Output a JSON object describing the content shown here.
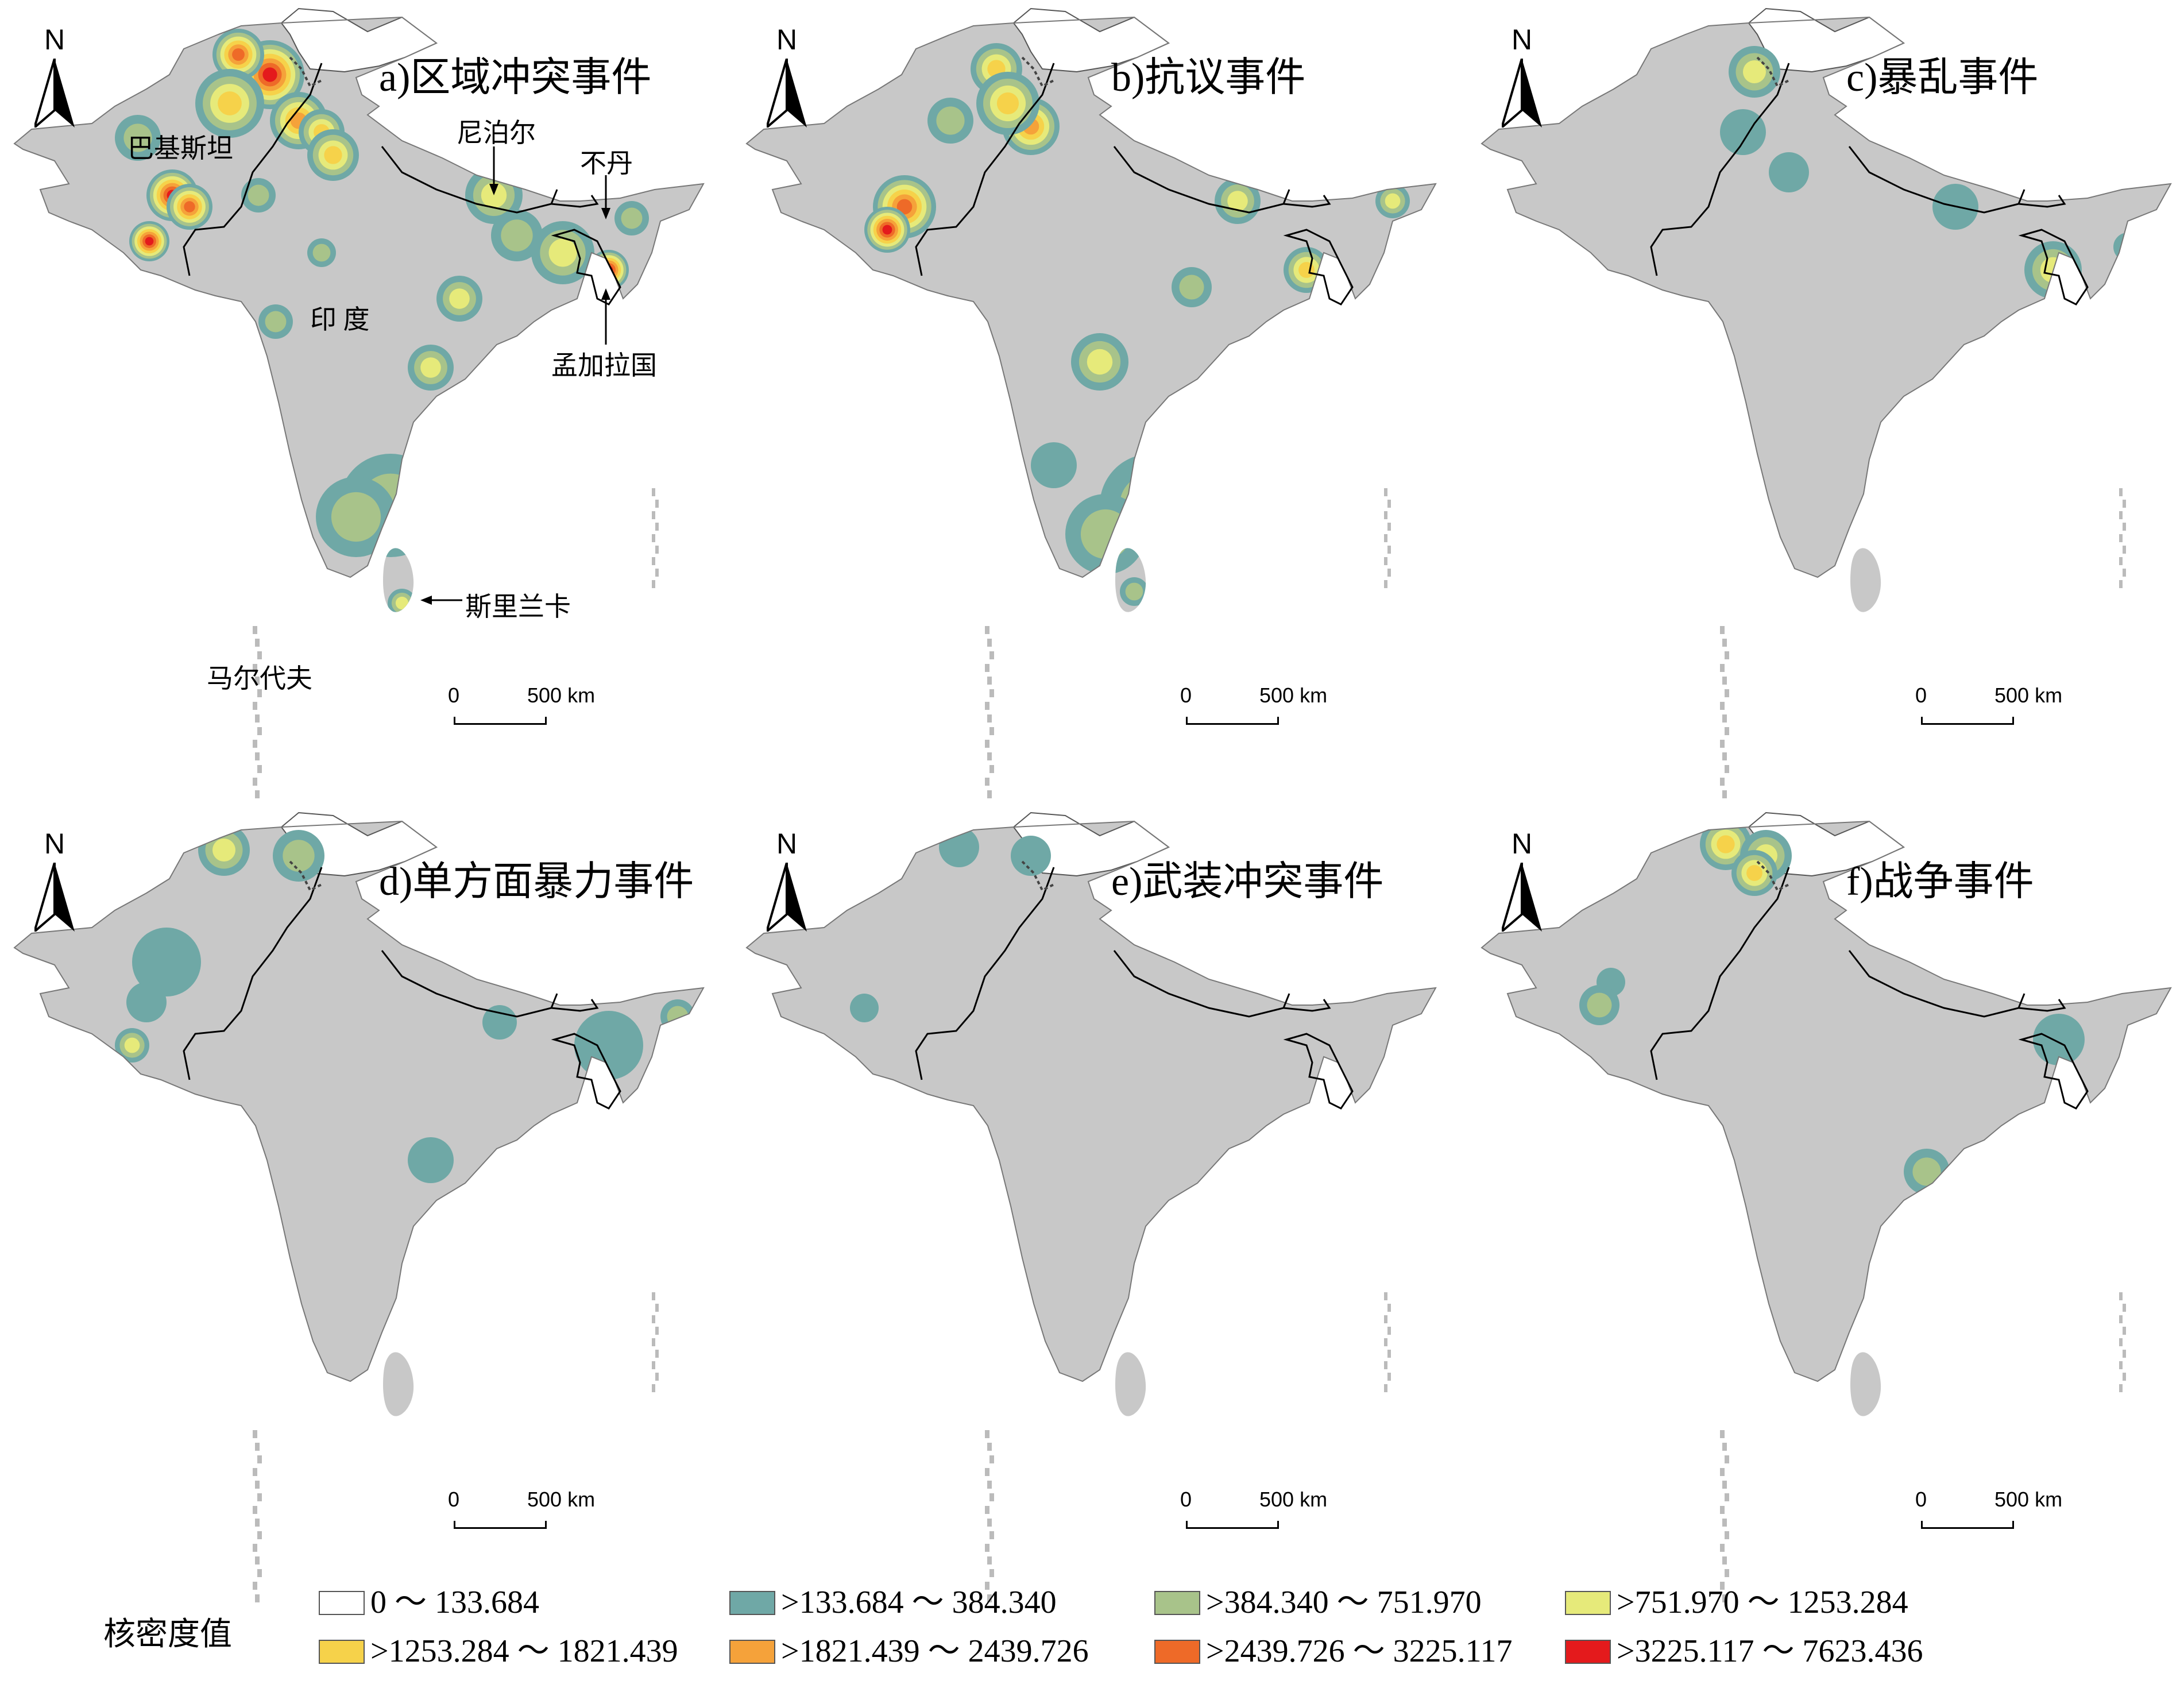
{
  "colors": {
    "land": "#c8c8c8",
    "kashmir_disputed": "#ffffff",
    "border": "#000000"
  },
  "panels": [
    {
      "title": "a)区域冲突事件",
      "scale": {
        "zero": "0",
        "distance": "500 km"
      },
      "north": "N",
      "place_labels": [
        "巴基斯坦",
        "尼泊尔",
        "不丹",
        "印 度",
        "孟加拉国",
        "斯里兰卡",
        "马尔代夫"
      ]
    },
    {
      "title": "b)抗议事件",
      "scale": {
        "zero": "0",
        "distance": "500 km"
      },
      "north": "N"
    },
    {
      "title": "c)暴乱事件",
      "scale": {
        "zero": "0",
        "distance": "500 km"
      },
      "north": "N"
    },
    {
      "title": "d)单方面暴力事件",
      "scale": {
        "zero": "0",
        "distance": "500 km"
      },
      "north": "N"
    },
    {
      "title": "e)武装冲突事件",
      "scale": {
        "zero": "0",
        "distance": "500 km"
      },
      "north": "N"
    },
    {
      "title": "f)战争事件",
      "scale": {
        "zero": "0",
        "distance": "500 km"
      },
      "north": "N"
    }
  ],
  "legend": {
    "title": "核密度值",
    "items": [
      {
        "label": "0 ～ 133.684",
        "color": "#ffffff"
      },
      {
        "label": ">133.684 ～ 384.340",
        "color": "#6fa8a6"
      },
      {
        "label": ">384.340 ～ 751.970",
        "color": "#a8c38a"
      },
      {
        "label": ">751.970 ～ 1253.284",
        "color": "#e6ea7a"
      },
      {
        "label": ">1253.284 ～ 1821.439",
        "color": "#f6d24a"
      },
      {
        "label": ">1821.439 ～ 2439.726",
        "color": "#f5a23a"
      },
      {
        "label": ">2439.726 ～ 3225.117",
        "color": "#ee6a28"
      },
      {
        "label": ">3225.117 ～ 7623.436",
        "color": "#e41a1c"
      }
    ]
  }
}
